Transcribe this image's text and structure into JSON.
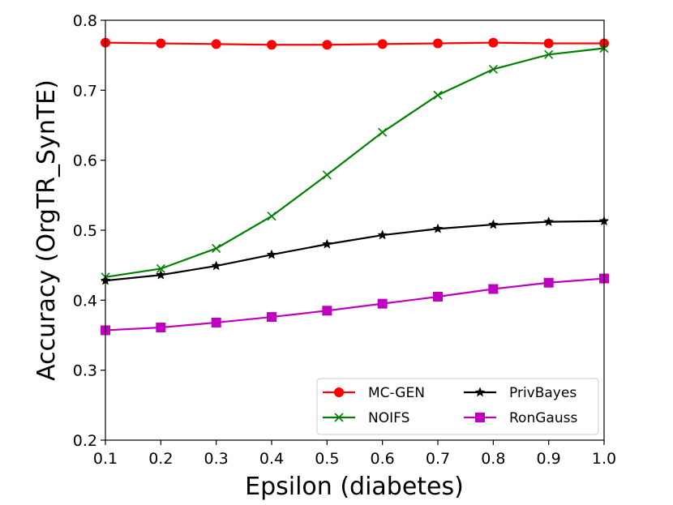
{
  "chart_data": {
    "type": "line",
    "title": "",
    "xlabel": "Epsilon (diabetes)",
    "ylabel": "Accuracy (OrgTR_SynTE)",
    "xlim": [
      0.1,
      1.0
    ],
    "ylim": [
      0.2,
      0.8
    ],
    "x": [
      0.1,
      0.2,
      0.3,
      0.4,
      0.5,
      0.6,
      0.7,
      0.8,
      0.9,
      1.0
    ],
    "x_tick_labels": [
      "0.1",
      "0.2",
      "0.3",
      "0.4",
      "0.5",
      "0.6",
      "0.7",
      "0.8",
      "0.9",
      "1.0"
    ],
    "y_ticks": [
      0.2,
      0.3,
      0.4,
      0.5,
      0.6,
      0.7,
      0.8
    ],
    "y_tick_labels": [
      "0.2",
      "0.3",
      "0.4",
      "0.5",
      "0.6",
      "0.7",
      "0.8"
    ],
    "grid": false,
    "legend_position": "lower-right",
    "series": [
      {
        "name": "MC-GEN",
        "color": "#ff0000",
        "marker": "circle",
        "values": [
          0.768,
          0.767,
          0.766,
          0.765,
          0.765,
          0.766,
          0.767,
          0.768,
          0.767,
          0.767
        ]
      },
      {
        "name": "NOIFS",
        "color": "#008000",
        "marker": "x",
        "values": [
          0.433,
          0.445,
          0.474,
          0.52,
          0.579,
          0.64,
          0.693,
          0.73,
          0.751,
          0.76
        ]
      },
      {
        "name": "PrivBayes",
        "color": "#000000",
        "marker": "star",
        "values": [
          0.428,
          0.436,
          0.449,
          0.465,
          0.48,
          0.493,
          0.502,
          0.508,
          0.512,
          0.513
        ]
      },
      {
        "name": "RonGauss",
        "color": "#bf00bf",
        "marker": "square",
        "values": [
          0.357,
          0.361,
          0.368,
          0.376,
          0.385,
          0.395,
          0.405,
          0.416,
          0.425,
          0.431
        ]
      }
    ]
  }
}
